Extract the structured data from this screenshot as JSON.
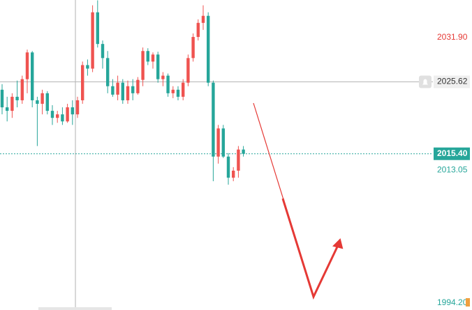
{
  "chart_data": {
    "type": "candlestick",
    "up_color": "#ef5350",
    "down_color": "#26a69a",
    "ylim": [
      1993.2,
      2037.25
    ],
    "open": [
      2024.5,
      2022.0,
      2021.5,
      2023.5,
      2023.0,
      2026.0,
      2029.8,
      2023.0,
      2022.5,
      2024.0,
      2021.5,
      2020.5,
      2021.0,
      2020.0,
      2022.0,
      2021.0,
      2023.0,
      2028.0,
      2027.5,
      2035.5,
      2031.0,
      2029.0,
      2025.0,
      2023.8,
      2025.5,
      2023.0,
      2025.0,
      2024.0,
      2025.9,
      2030.0,
      2028.5,
      2029.5,
      2026.0,
      2026.5,
      2024.0,
      2024.5,
      2023.5,
      2025.5,
      2029.0,
      2032.0,
      2034.0,
      2035.0,
      2025.5,
      2015.0,
      2019.0,
      2015.0,
      2012.0,
      2013.0,
      2016.0
    ],
    "high": [
      2025.3,
      2023.5,
      2024.0,
      2025.8,
      2026.5,
      2030.2,
      2030.0,
      2023.5,
      2024.5,
      2024.3,
      2022.3,
      2021.5,
      2022.0,
      2022.5,
      2023.0,
      2023.5,
      2028.5,
      2028.8,
      2036.5,
      2037.2,
      2031.5,
      2030.0,
      2026.0,
      2026.5,
      2026.0,
      2025.8,
      2026.0,
      2026.3,
      2030.5,
      2030.4,
      2029.8,
      2029.9,
      2027.0,
      2026.8,
      2025.0,
      2025.0,
      2026.0,
      2029.5,
      2032.5,
      2034.5,
      2036.5,
      2035.5,
      2025.8,
      2019.5,
      2019.5,
      2015.5,
      2013.5,
      2016.5,
      2016.5
    ],
    "low": [
      2021.0,
      2020.0,
      2020.5,
      2022.0,
      2022.5,
      2024.0,
      2022.0,
      2016.5,
      2021.0,
      2021.0,
      2019.5,
      2019.8,
      2019.5,
      2019.8,
      2019.5,
      2020.5,
      2022.5,
      2026.5,
      2027.0,
      2030.5,
      2027.5,
      2024.0,
      2023.5,
      2023.0,
      2022.5,
      2022.5,
      2023.0,
      2023.8,
      2025.0,
      2028.0,
      2027.5,
      2025.5,
      2025.0,
      2023.5,
      2023.3,
      2023.0,
      2023.0,
      2025.0,
      2028.5,
      2031.5,
      2033.0,
      2025.0,
      2011.5,
      2014.0,
      2014.8,
      2011.0,
      2011.5,
      2012.0,
      2015.0
    ],
    "close": [
      2022.0,
      2021.5,
      2023.5,
      2023.0,
      2026.0,
      2029.8,
      2023.0,
      2022.5,
      2024.0,
      2021.5,
      2020.5,
      2021.0,
      2020.0,
      2022.0,
      2021.0,
      2023.0,
      2028.0,
      2027.5,
      2035.5,
      2031.0,
      2029.0,
      2025.0,
      2023.8,
      2025.5,
      2023.0,
      2025.0,
      2024.0,
      2025.9,
      2030.0,
      2028.5,
      2029.5,
      2026.0,
      2026.5,
      2024.0,
      2024.5,
      2023.5,
      2025.5,
      2029.0,
      2032.0,
      2034.0,
      2035.0,
      2025.5,
      2015.0,
      2019.0,
      2015.0,
      2012.0,
      2013.0,
      2016.0,
      2015.4
    ],
    "price_labels": {
      "high": {
        "value": 2031.9,
        "label": "2031.90"
      },
      "alert": 2025.62,
      "last": {
        "value": 2015.4,
        "label": "2015.40"
      },
      "low": 2013.05,
      "bottom": {
        "value": 1994.2,
        "label": "1994.20"
      }
    }
  }
}
